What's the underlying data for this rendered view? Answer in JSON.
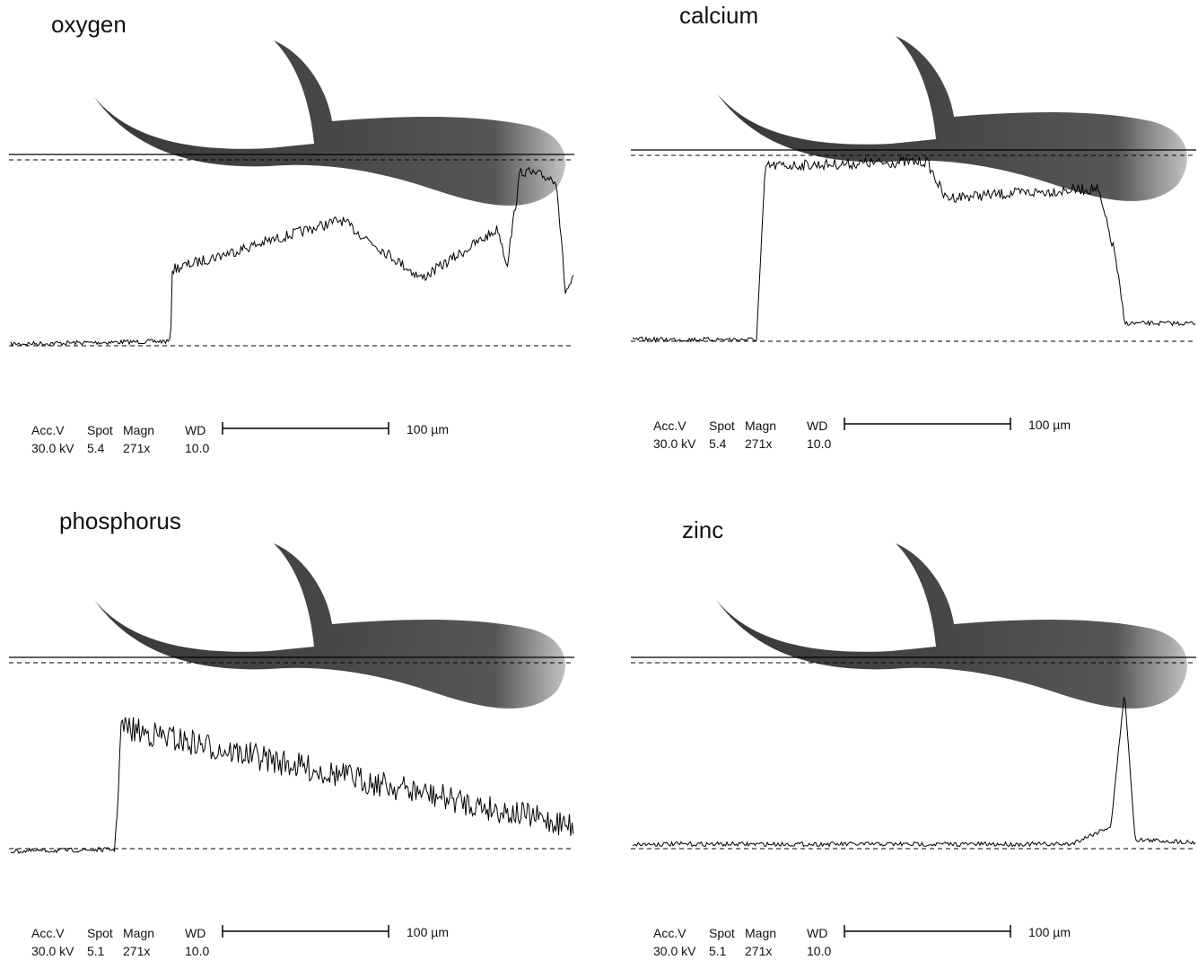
{
  "panels": [
    {
      "title": "oxygen",
      "header": [
        "Acc.V",
        "Spot",
        "Magn",
        "WD"
      ],
      "values": [
        "30.0 kV",
        "5.4",
        "271x",
        "10.0"
      ],
      "scale": "100 µm"
    },
    {
      "title": "calcium",
      "header": [
        "Acc.V",
        "Spot",
        "Magn",
        "WD"
      ],
      "values": [
        "30.0 kV",
        "5.4",
        "271x",
        "10.0"
      ],
      "scale": "100 µm"
    },
    {
      "title": "phosphorus",
      "header": [
        "Acc.V",
        "Spot",
        "Magn",
        "WD"
      ],
      "values": [
        "30.0 kV",
        "5.1",
        "271x",
        "10.0"
      ],
      "scale": "100 µm"
    },
    {
      "title": "zinc",
      "header": [
        "Acc.V",
        "Spot",
        "Magn",
        "WD"
      ],
      "values": [
        "30.0 kV",
        "5.1",
        "271x",
        "10.0"
      ],
      "scale": "100 µm"
    }
  ]
}
